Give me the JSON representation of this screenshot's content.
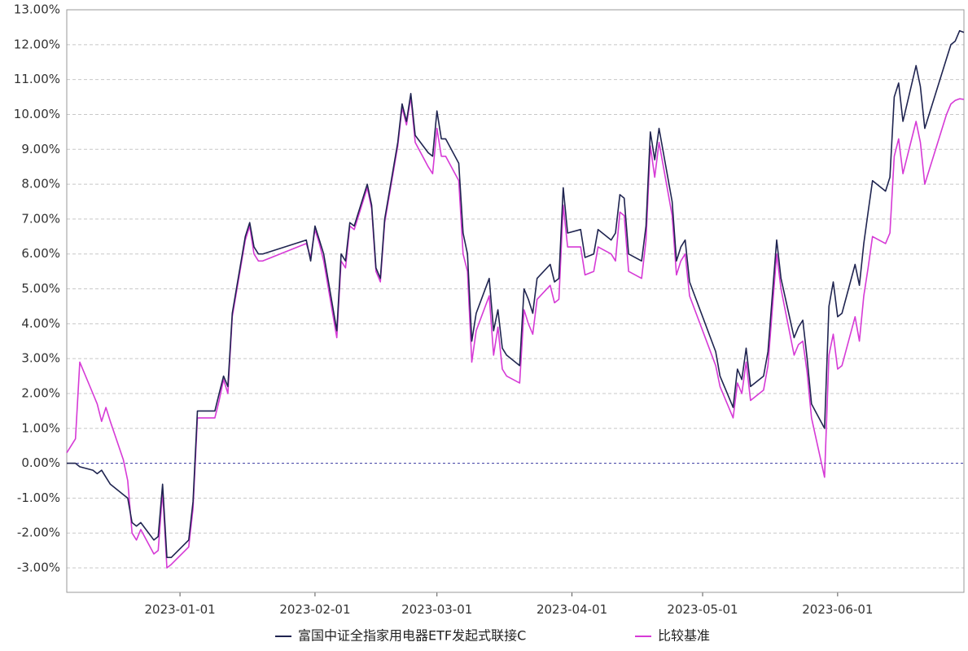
{
  "chart_data": {
    "type": "line",
    "title": "",
    "xlabel": "",
    "ylabel": "",
    "ylim": [
      -0.037,
      0.13
    ],
    "yticks": [
      -0.03,
      -0.02,
      -0.01,
      0,
      0.01,
      0.02,
      0.03,
      0.04,
      0.05,
      0.06,
      0.07,
      0.08,
      0.09,
      0.1,
      0.11,
      0.12,
      0.13
    ],
    "ytick_labels": [
      "-3.00%",
      "-2.00%",
      "-1.00%",
      "0.00%",
      "1.00%",
      "2.00%",
      "3.00%",
      "4.00%",
      "5.00%",
      "6.00%",
      "7.00%",
      "8.00%",
      "9.00%",
      "10.00%",
      "11.00%",
      "12.00%",
      "13.00%"
    ],
    "xlim": [
      "2022-12-06",
      "2023-06-30"
    ],
    "xticks": [
      "2023-01-01",
      "2023-02-01",
      "2023-03-01",
      "2023-04-01",
      "2023-05-01",
      "2023-06-01"
    ],
    "grid": true,
    "legend_position": "bottom-center",
    "series": [
      {
        "name": "富国中证全指家用电器ETF发起式联接C",
        "color": "#1f2450",
        "x": [
          "2022-12-06",
          "2022-12-08",
          "2022-12-09",
          "2022-12-12",
          "2022-12-13",
          "2022-12-14",
          "2022-12-15",
          "2022-12-16",
          "2022-12-19",
          "2022-12-20",
          "2022-12-21",
          "2022-12-22",
          "2022-12-23",
          "2022-12-26",
          "2022-12-27",
          "2022-12-28",
          "2022-12-29",
          "2022-12-30",
          "2023-01-03",
          "2023-01-04",
          "2023-01-05",
          "2023-01-06",
          "2023-01-09",
          "2023-01-10",
          "2023-01-11",
          "2023-01-12",
          "2023-01-13",
          "2023-01-16",
          "2023-01-17",
          "2023-01-18",
          "2023-01-19",
          "2023-01-20",
          "2023-01-30",
          "2023-01-31",
          "2023-02-01",
          "2023-02-02",
          "2023-02-03",
          "2023-02-06",
          "2023-02-07",
          "2023-02-08",
          "2023-02-09",
          "2023-02-10",
          "2023-02-13",
          "2023-02-14",
          "2023-02-15",
          "2023-02-16",
          "2023-02-17",
          "2023-02-20",
          "2023-02-21",
          "2023-02-22",
          "2023-02-23",
          "2023-02-24",
          "2023-02-27",
          "2023-02-28",
          "2023-03-01",
          "2023-03-02",
          "2023-03-03",
          "2023-03-06",
          "2023-03-07",
          "2023-03-08",
          "2023-03-09",
          "2023-03-10",
          "2023-03-13",
          "2023-03-14",
          "2023-03-15",
          "2023-03-16",
          "2023-03-17",
          "2023-03-20",
          "2023-03-21",
          "2023-03-22",
          "2023-03-23",
          "2023-03-24",
          "2023-03-27",
          "2023-03-28",
          "2023-03-29",
          "2023-03-30",
          "2023-03-31",
          "2023-04-03",
          "2023-04-04",
          "2023-04-06",
          "2023-04-07",
          "2023-04-10",
          "2023-04-11",
          "2023-04-12",
          "2023-04-13",
          "2023-04-14",
          "2023-04-17",
          "2023-04-18",
          "2023-04-19",
          "2023-04-20",
          "2023-04-21",
          "2023-04-24",
          "2023-04-25",
          "2023-04-26",
          "2023-04-27",
          "2023-04-28",
          "2023-05-04",
          "2023-05-05",
          "2023-05-08",
          "2023-05-09",
          "2023-05-10",
          "2023-05-11",
          "2023-05-12",
          "2023-05-15",
          "2023-05-16",
          "2023-05-17",
          "2023-05-18",
          "2023-05-19",
          "2023-05-22",
          "2023-05-23",
          "2023-05-24",
          "2023-05-25",
          "2023-05-26",
          "2023-05-29",
          "2023-05-30",
          "2023-05-31",
          "2023-06-01",
          "2023-06-02",
          "2023-06-05",
          "2023-06-06",
          "2023-06-07",
          "2023-06-08",
          "2023-06-09",
          "2023-06-12",
          "2023-06-13",
          "2023-06-14",
          "2023-06-15",
          "2023-06-16",
          "2023-06-19",
          "2023-06-20",
          "2023-06-21",
          "2023-06-26",
          "2023-06-27",
          "2023-06-28",
          "2023-06-29",
          "2023-06-30"
        ],
        "values": [
          0.0,
          0.0,
          -0.001,
          -0.002,
          -0.003,
          -0.002,
          -0.004,
          -0.006,
          -0.009,
          -0.01,
          -0.017,
          -0.018,
          -0.017,
          -0.022,
          -0.021,
          -0.006,
          -0.027,
          -0.027,
          -0.022,
          -0.011,
          0.015,
          0.015,
          0.015,
          0.02,
          0.025,
          0.022,
          0.043,
          0.065,
          0.069,
          0.062,
          0.06,
          0.06,
          0.064,
          0.058,
          0.068,
          0.064,
          0.06,
          0.038,
          0.06,
          0.058,
          0.069,
          0.068,
          0.08,
          0.074,
          0.056,
          0.053,
          0.07,
          0.092,
          0.103,
          0.098,
          0.106,
          0.094,
          0.089,
          0.088,
          0.101,
          0.093,
          0.093,
          0.086,
          0.066,
          0.06,
          0.035,
          0.043,
          0.053,
          0.038,
          0.044,
          0.033,
          0.031,
          0.028,
          0.05,
          0.047,
          0.043,
          0.053,
          0.057,
          0.052,
          0.053,
          0.079,
          0.066,
          0.067,
          0.059,
          0.06,
          0.067,
          0.064,
          0.066,
          0.077,
          0.076,
          0.06,
          0.058,
          0.068,
          0.095,
          0.087,
          0.096,
          0.075,
          0.058,
          0.062,
          0.064,
          0.052,
          0.032,
          0.025,
          0.016,
          0.027,
          0.024,
          0.033,
          0.022,
          0.025,
          0.032,
          0.048,
          0.064,
          0.053,
          0.036,
          0.039,
          0.041,
          0.03,
          0.017,
          0.01,
          0.045,
          0.052,
          0.042,
          0.043,
          0.057,
          0.051,
          0.063,
          0.072,
          0.081,
          0.078,
          0.082,
          0.105,
          0.109,
          0.098,
          0.114,
          0.108,
          0.096,
          0.116,
          0.12,
          0.121,
          0.124,
          0.1235
        ]
      },
      {
        "name": "比较基准",
        "color": "#d63ad6",
        "x": [
          "2022-12-06",
          "2022-12-08",
          "2022-12-09",
          "2022-12-12",
          "2022-12-13",
          "2022-12-14",
          "2022-12-15",
          "2022-12-16",
          "2022-12-19",
          "2022-12-20",
          "2022-12-21",
          "2022-12-22",
          "2022-12-23",
          "2022-12-26",
          "2022-12-27",
          "2022-12-28",
          "2022-12-29",
          "2022-12-30",
          "2023-01-03",
          "2023-01-04",
          "2023-01-05",
          "2023-01-06",
          "2023-01-09",
          "2023-01-10",
          "2023-01-11",
          "2023-01-12",
          "2023-01-13",
          "2023-01-16",
          "2023-01-17",
          "2023-01-18",
          "2023-01-19",
          "2023-01-20",
          "2023-01-30",
          "2023-01-31",
          "2023-02-01",
          "2023-02-02",
          "2023-02-03",
          "2023-02-06",
          "2023-02-07",
          "2023-02-08",
          "2023-02-09",
          "2023-02-10",
          "2023-02-13",
          "2023-02-14",
          "2023-02-15",
          "2023-02-16",
          "2023-02-17",
          "2023-02-20",
          "2023-02-21",
          "2023-02-22",
          "2023-02-23",
          "2023-02-24",
          "2023-02-27",
          "2023-02-28",
          "2023-03-01",
          "2023-03-02",
          "2023-03-03",
          "2023-03-06",
          "2023-03-07",
          "2023-03-08",
          "2023-03-09",
          "2023-03-10",
          "2023-03-13",
          "2023-03-14",
          "2023-03-15",
          "2023-03-16",
          "2023-03-17",
          "2023-03-20",
          "2023-03-21",
          "2023-03-22",
          "2023-03-23",
          "2023-03-24",
          "2023-03-27",
          "2023-03-28",
          "2023-03-29",
          "2023-03-30",
          "2023-03-31",
          "2023-04-03",
          "2023-04-04",
          "2023-04-06",
          "2023-04-07",
          "2023-04-10",
          "2023-04-11",
          "2023-04-12",
          "2023-04-13",
          "2023-04-14",
          "2023-04-17",
          "2023-04-18",
          "2023-04-19",
          "2023-04-20",
          "2023-04-21",
          "2023-04-24",
          "2023-04-25",
          "2023-04-26",
          "2023-04-27",
          "2023-04-28",
          "2023-05-04",
          "2023-05-05",
          "2023-05-08",
          "2023-05-09",
          "2023-05-10",
          "2023-05-11",
          "2023-05-12",
          "2023-05-15",
          "2023-05-16",
          "2023-05-17",
          "2023-05-18",
          "2023-05-19",
          "2023-05-22",
          "2023-05-23",
          "2023-05-24",
          "2023-05-25",
          "2023-05-26",
          "2023-05-29",
          "2023-05-30",
          "2023-05-31",
          "2023-06-01",
          "2023-06-02",
          "2023-06-05",
          "2023-06-06",
          "2023-06-07",
          "2023-06-08",
          "2023-06-09",
          "2023-06-12",
          "2023-06-13",
          "2023-06-14",
          "2023-06-15",
          "2023-06-16",
          "2023-06-19",
          "2023-06-20",
          "2023-06-21",
          "2023-06-26",
          "2023-06-27",
          "2023-06-28",
          "2023-06-29",
          "2023-06-30"
        ],
        "values": [
          0.003,
          0.007,
          0.029,
          0.02,
          0.017,
          0.012,
          0.016,
          0.012,
          0.001,
          -0.005,
          -0.02,
          -0.022,
          -0.019,
          -0.026,
          -0.025,
          -0.008,
          -0.03,
          -0.029,
          -0.024,
          -0.013,
          0.013,
          0.013,
          0.013,
          0.018,
          0.024,
          0.02,
          0.042,
          0.064,
          0.068,
          0.06,
          0.058,
          0.058,
          0.063,
          0.059,
          0.067,
          0.063,
          0.058,
          0.036,
          0.058,
          0.056,
          0.068,
          0.067,
          0.079,
          0.073,
          0.055,
          0.052,
          0.069,
          0.091,
          0.102,
          0.097,
          0.105,
          0.092,
          0.085,
          0.083,
          0.096,
          0.088,
          0.088,
          0.081,
          0.06,
          0.055,
          0.029,
          0.038,
          0.048,
          0.031,
          0.039,
          0.027,
          0.025,
          0.023,
          0.044,
          0.04,
          0.037,
          0.047,
          0.051,
          0.046,
          0.047,
          0.074,
          0.062,
          0.062,
          0.054,
          0.055,
          0.062,
          0.06,
          0.058,
          0.072,
          0.071,
          0.055,
          0.053,
          0.064,
          0.091,
          0.082,
          0.092,
          0.071,
          0.054,
          0.058,
          0.06,
          0.048,
          0.028,
          0.022,
          0.013,
          0.023,
          0.02,
          0.029,
          0.018,
          0.021,
          0.028,
          0.044,
          0.06,
          0.05,
          0.031,
          0.034,
          0.035,
          0.026,
          0.013,
          -0.004,
          0.031,
          0.037,
          0.027,
          0.028,
          0.042,
          0.035,
          0.048,
          0.056,
          0.065,
          0.063,
          0.066,
          0.088,
          0.093,
          0.083,
          0.098,
          0.092,
          0.08,
          0.1,
          0.103,
          0.104,
          0.1045,
          0.1043
        ]
      }
    ]
  }
}
